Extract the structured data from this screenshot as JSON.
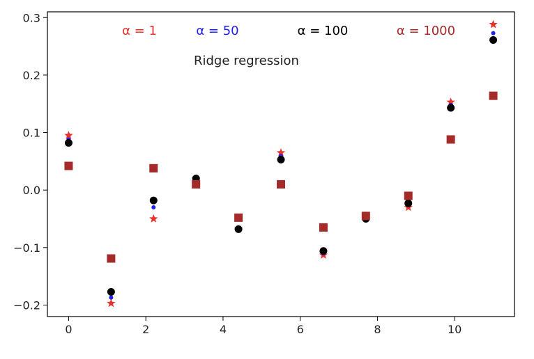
{
  "chart_data": {
    "type": "scatter",
    "title": "Ridge regression",
    "xlabel": "",
    "ylabel": "",
    "xlim": [
      -0.55,
      11.55
    ],
    "ylim": [
      -0.22,
      0.31
    ],
    "x_ticks": [
      0,
      2,
      4,
      6,
      8,
      10
    ],
    "x_tick_labels": [
      "0",
      "2",
      "4",
      "6",
      "8",
      "10"
    ],
    "y_ticks": [
      -0.2,
      -0.1,
      0.0,
      0.1,
      0.2,
      0.3
    ],
    "y_tick_labels": [
      "−0.2",
      "−0.1",
      "0.0",
      "0.1",
      "0.2",
      "0.3"
    ],
    "grid": false,
    "x": [
      0,
      1.1,
      2.2,
      3.3,
      4.4,
      5.5,
      6.6,
      7.7,
      8.8,
      9.9,
      11.0
    ],
    "series": [
      {
        "name": "α = 1",
        "color": "#e8312b",
        "marker": "star",
        "values": [
          0.095,
          -0.197,
          -0.05,
          0.02,
          -0.068,
          0.065,
          -0.113,
          -0.045,
          -0.03,
          0.153,
          0.288
        ]
      },
      {
        "name": "α = 50",
        "color": "#1f1ff0",
        "marker": "point",
        "values": [
          0.088,
          -0.187,
          -0.03,
          0.02,
          -0.068,
          0.059,
          -0.11,
          -0.047,
          -0.025,
          0.148,
          0.273
        ]
      },
      {
        "name": "α = 100",
        "color": "#000000",
        "marker": "circle",
        "values": [
          0.082,
          -0.177,
          -0.018,
          0.02,
          -0.068,
          0.053,
          -0.106,
          -0.05,
          -0.023,
          0.143,
          0.261
        ]
      },
      {
        "name": "α = 1000",
        "color": "#a52a2a",
        "marker": "square",
        "values": [
          0.042,
          -0.119,
          0.038,
          0.01,
          -0.048,
          0.01,
          -0.065,
          -0.045,
          -0.01,
          0.088,
          0.164
        ]
      }
    ]
  }
}
